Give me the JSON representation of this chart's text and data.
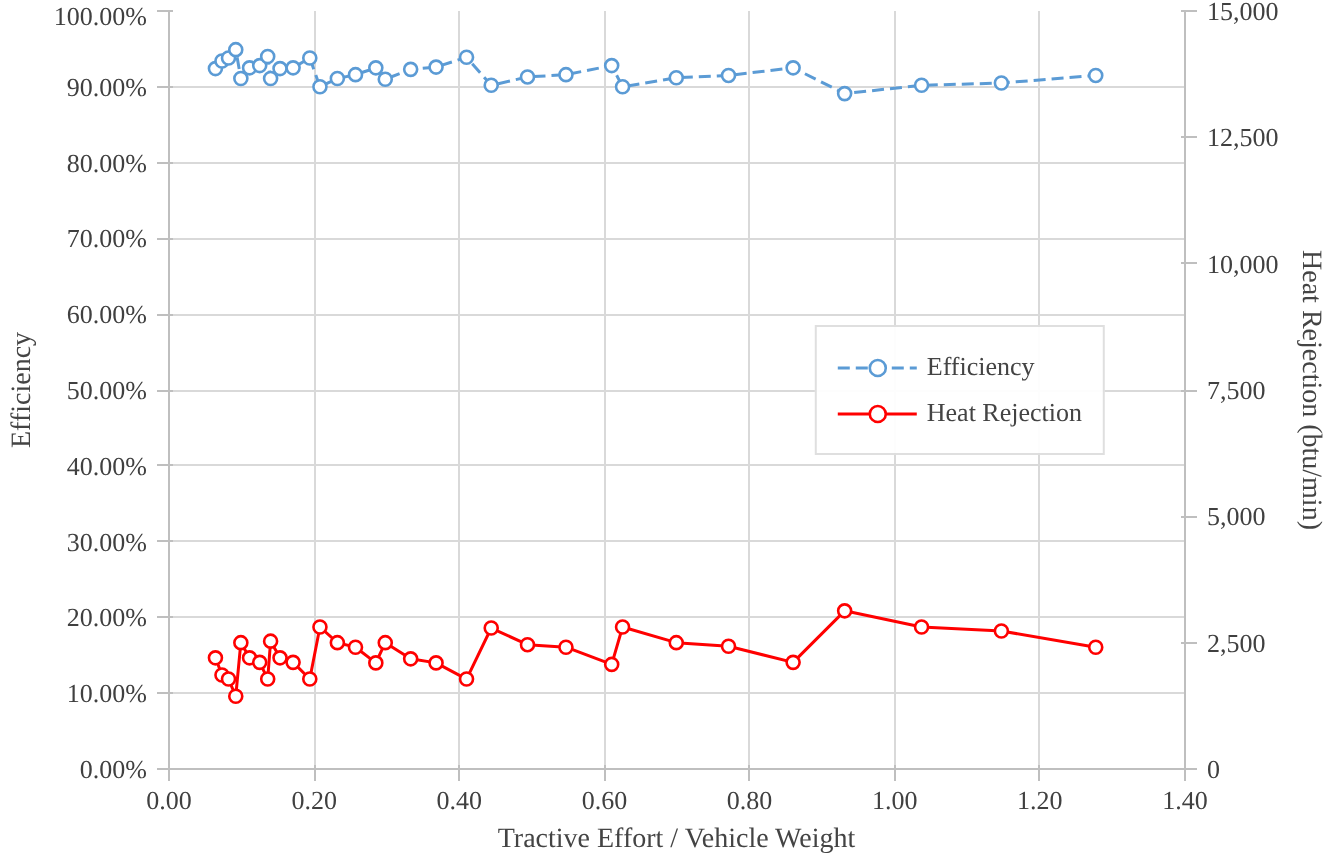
{
  "chart_data": {
    "type": "line",
    "xlabel": "Tractive Effort / Vehicle Weight",
    "ylabel": "Efficiency",
    "y2label": "Heat Rejection (btu/min)",
    "x": [
      0.064,
      0.073,
      0.082,
      0.092,
      0.099,
      0.111,
      0.125,
      0.136,
      0.14,
      0.153,
      0.171,
      0.194,
      0.208,
      0.232,
      0.257,
      0.285,
      0.298,
      0.333,
      0.368,
      0.41,
      0.444,
      0.494,
      0.547,
      0.61,
      0.625,
      0.699,
      0.771,
      0.86,
      0.931,
      1.037,
      1.147,
      1.277
    ],
    "series": [
      {
        "name": "Efficiency",
        "color": "#5b9bd5",
        "line_style": "dashed",
        "values": [
          92.4,
          93.4,
          93.8,
          94.9,
          91.1,
          92.5,
          92.8,
          94.0,
          91.1,
          92.4,
          92.5,
          93.8,
          90.0,
          91.1,
          91.6,
          92.5,
          91.0,
          92.3,
          92.6,
          93.9,
          90.2,
          91.3,
          91.6,
          92.8,
          90.0,
          91.2,
          91.5,
          92.5,
          89.1,
          90.2,
          90.5,
          91.5
        ]
      },
      {
        "name": "Heat Rejection",
        "color": "#ff0000",
        "line_style": "solid",
        "axis": "y2",
        "values": [
          2200,
          1860,
          1780,
          1440,
          2500,
          2200,
          2110,
          1780,
          2530,
          2200,
          2110,
          1780,
          2810,
          2500,
          2410,
          2100,
          2500,
          2180,
          2100,
          1780,
          2790,
          2460,
          2410,
          2070,
          2810,
          2500,
          2430,
          2110,
          3130,
          2810,
          2730,
          2410
        ]
      }
    ],
    "marker": "circle",
    "grid": true,
    "legend": "right",
    "xlim": [
      0,
      1.4
    ],
    "xticks": [
      {
        "value": 0,
        "label": "0.00"
      },
      {
        "value": 0.2,
        "label": "0.20"
      },
      {
        "value": 0.4,
        "label": "0.40"
      },
      {
        "value": 0.6,
        "label": "0.60"
      },
      {
        "value": 0.8,
        "label": "0.80"
      },
      {
        "value": 1.0,
        "label": "1.00"
      },
      {
        "value": 1.2,
        "label": "1.20"
      },
      {
        "value": 1.4,
        "label": "1.40"
      }
    ],
    "ylim": [
      0,
      100
    ],
    "yticks": [
      {
        "value": 0,
        "label": "0.00%"
      },
      {
        "value": 10,
        "label": "10.00%"
      },
      {
        "value": 20,
        "label": "20.00%"
      },
      {
        "value": 30,
        "label": "30.00%"
      },
      {
        "value": 40,
        "label": "40.00%"
      },
      {
        "value": 50,
        "label": "50.00%"
      },
      {
        "value": 60,
        "label": "60.00%"
      },
      {
        "value": 70,
        "label": "70.00%"
      },
      {
        "value": 80,
        "label": "80.00%"
      },
      {
        "value": 90,
        "label": "90.00%"
      },
      {
        "value": 100,
        "label": "100.00%"
      }
    ],
    "y2lim": [
      0,
      15000
    ],
    "y2ticks": [
      0,
      {
        "value": 2500,
        "label": "2,500"
      },
      {
        "value": 5000,
        "label": "5,000"
      },
      {
        "value": 7500,
        "label": "7,500"
      },
      {
        "value": 10000,
        "label": "10,000"
      },
      {
        "value": 12500,
        "label": "12,500"
      },
      {
        "value": 15000,
        "label": "15,000"
      }
    ]
  }
}
